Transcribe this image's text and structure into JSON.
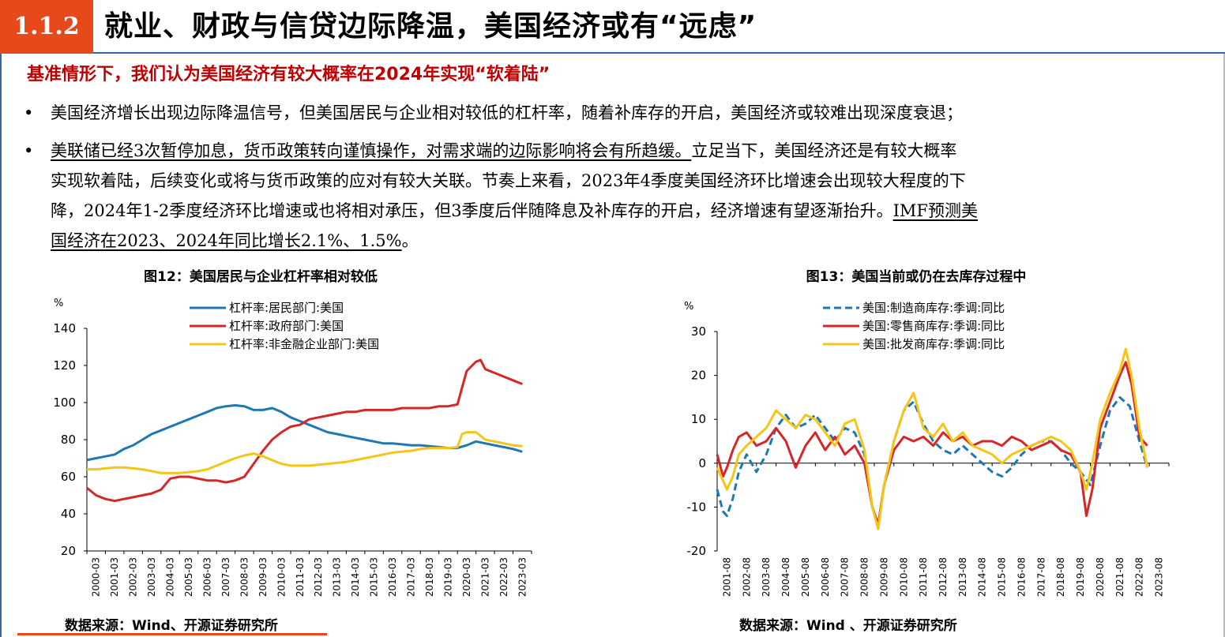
{
  "header": {
    "section": "1.1.2",
    "title": "就业、财政与信贷边际降温，美国经济或有“远虑”"
  },
  "subtitle": "基准情形下，我们认为美国经济有较大概率在2024年实现“软着陆”",
  "bullets": [
    {
      "lines": [
        {
          "segments": [
            {
              "text": "美国经济增长出现边际降温信号，但美国居民与企业相对较低的杠杆率，随着补库存的开启，美国经济或较难出现深度衰退；",
              "u": false
            }
          ]
        }
      ]
    },
    {
      "lines": [
        {
          "segments": [
            {
              "text": "美联储已经3次暂停加息，货币政策转向谨慎操作，对需求端的边际影响将会有所趋缓。",
              "u": true
            },
            {
              "text": "立足当下，美国经济还是有较大概率",
              "u": false
            }
          ]
        },
        {
          "segments": [
            {
              "text": "实现软着陆，后续变化或将与货币政策的应对有较大关联。节奏上来看，2023年4季度美国经济环比增速会出现较大程度的下",
              "u": false
            }
          ]
        },
        {
          "segments": [
            {
              "text": "降，2024年1-2季度经济环比增速或也将相对承压，但3季度后伴随降息及补库存的开启，经济增速有望逐渐抬升。",
              "u": false
            },
            {
              "text": "IMF预测美",
              "u": true
            }
          ]
        },
        {
          "segments": [
            {
              "text": "国经济在2023、2024年同比增长2.1%、1.5%",
              "u": true
            },
            {
              "text": "。",
              "u": false
            }
          ]
        }
      ]
    }
  ],
  "bullet_symbol": "•",
  "charts": [
    {
      "title": "图12：美国居民与企业杠杆率相对较低",
      "source": "数据来源：Wind、开源证券研究所"
    },
    {
      "title": "图13：美国当前或仍在去库存过程中",
      "source": "数据来源：Wind 、开源证券研究所"
    }
  ],
  "chart_data": [
    {
      "type": "line",
      "ylabel": "%",
      "ylim": [
        20,
        140
      ],
      "yticks": [
        20,
        40,
        60,
        80,
        100,
        120,
        140
      ],
      "x_start": 2000,
      "x_tick_labels": [
        "2000-03",
        "2001-03",
        "2002-03",
        "2003-03",
        "2004-03",
        "2005-03",
        "2006-03",
        "2007-03",
        "2008-03",
        "2009-03",
        "2010-03",
        "2011-03",
        "2012-03",
        "2013-03",
        "2014-03",
        "2015-03",
        "2016-03",
        "2017-03",
        "2018-03",
        "2019-03",
        "2020-03",
        "2021-03",
        "2022-03",
        "2023-03"
      ],
      "legend_position": "top-left",
      "grid": false,
      "series": [
        {
          "name": "杠杆率:居民部门:美国",
          "color": "#1f77b4",
          "x": [
            2000.0,
            2000.5,
            2001.0,
            2001.5,
            2002.0,
            2002.5,
            2003.0,
            2003.5,
            2004.0,
            2004.5,
            2005.0,
            2005.5,
            2006.0,
            2006.5,
            2007.0,
            2007.5,
            2008.0,
            2008.5,
            2009.0,
            2009.5,
            2010.0,
            2010.5,
            2011.0,
            2011.5,
            2012.0,
            2012.5,
            2013.0,
            2013.5,
            2014.0,
            2014.5,
            2015.0,
            2015.5,
            2016.0,
            2016.5,
            2017.0,
            2017.5,
            2018.0,
            2018.5,
            2019.0,
            2019.5,
            2020.0,
            2020.5,
            2021.0,
            2021.5,
            2022.0,
            2022.5,
            2023.0,
            2023.5
          ],
          "values": [
            69,
            70,
            71,
            72,
            75,
            77,
            80,
            83,
            85,
            87,
            89,
            91,
            93,
            95,
            97,
            98,
            98.5,
            98,
            96,
            96,
            97,
            95,
            92,
            90,
            88,
            86,
            84,
            83,
            82,
            81,
            80,
            79,
            78,
            78,
            77.5,
            77,
            77,
            76.5,
            76,
            75.5,
            75.5,
            77,
            79,
            78,
            77,
            76,
            75,
            73.5
          ]
        },
        {
          "name": "杠杆率:政府部门:美国",
          "color": "#d62728",
          "x": [
            2000.0,
            2000.5,
            2001.0,
            2001.5,
            2002.0,
            2002.5,
            2003.0,
            2003.5,
            2004.0,
            2004.5,
            2005.0,
            2005.5,
            2006.0,
            2006.5,
            2007.0,
            2007.5,
            2008.0,
            2008.5,
            2009.0,
            2009.5,
            2010.0,
            2010.5,
            2011.0,
            2011.5,
            2012.0,
            2012.5,
            2013.0,
            2013.5,
            2014.0,
            2014.5,
            2015.0,
            2015.5,
            2016.0,
            2016.5,
            2017.0,
            2017.5,
            2018.0,
            2018.5,
            2019.0,
            2019.5,
            2020.0,
            2020.25,
            2020.5,
            2021.0,
            2021.25,
            2021.5,
            2022.0,
            2022.5,
            2023.0,
            2023.5
          ],
          "values": [
            54,
            50,
            48,
            47,
            48,
            49,
            50,
            51,
            53,
            59,
            60,
            60,
            59,
            58,
            58,
            57,
            58,
            60,
            67,
            74,
            80,
            84,
            87,
            88,
            91,
            92,
            93,
            94,
            95,
            95,
            96,
            96,
            96,
            96,
            97,
            97,
            97,
            97,
            98,
            98,
            99,
            108,
            117,
            122,
            123,
            118,
            116,
            114,
            112,
            110
          ]
        },
        {
          "name": "杠杆率:非金融企业部门:美国",
          "color": "#f5c518",
          "x": [
            2000.0,
            2000.5,
            2001.0,
            2001.5,
            2002.0,
            2002.5,
            2003.0,
            2003.5,
            2004.0,
            2004.5,
            2005.0,
            2005.5,
            2006.0,
            2006.5,
            2007.0,
            2007.5,
            2008.0,
            2008.5,
            2009.0,
            2009.5,
            2010.0,
            2010.5,
            2011.0,
            2011.5,
            2012.0,
            2012.5,
            2013.0,
            2013.5,
            2014.0,
            2014.5,
            2015.0,
            2015.5,
            2016.0,
            2016.5,
            2017.0,
            2017.5,
            2018.0,
            2018.5,
            2019.0,
            2019.5,
            2020.0,
            2020.25,
            2020.5,
            2021.0,
            2021.5,
            2022.0,
            2022.5,
            2023.0,
            2023.5
          ],
          "values": [
            64,
            64,
            64.5,
            65,
            65,
            64.5,
            64,
            63,
            62,
            62,
            62,
            62.5,
            63,
            64,
            66,
            68,
            70,
            71.5,
            72.5,
            71,
            69,
            67,
            66,
            66,
            66,
            66.5,
            67,
            67.5,
            68,
            69,
            70,
            71,
            72,
            73,
            73.5,
            74,
            75,
            75.5,
            75.5,
            75.5,
            76,
            83,
            84,
            84,
            80,
            79,
            78,
            77,
            76.5
          ]
        }
      ]
    },
    {
      "type": "line",
      "ylabel": "%",
      "ylim": [
        -20,
        30
      ],
      "yticks": [
        -20,
        -10,
        0,
        10,
        20,
        30
      ],
      "x_start": 2001.5,
      "x_tick_labels": [
        "2001-08",
        "2002-08",
        "2003-08",
        "2004-08",
        "2005-08",
        "2006-08",
        "2007-08",
        "2008-08",
        "2009-08",
        "2010-08",
        "2011-08",
        "2012-08",
        "2013-08",
        "2014-08",
        "2015-08",
        "2016-08",
        "2017-08",
        "2018-08",
        "2019-08",
        "2020-08",
        "2021-08",
        "2022-08",
        "2023-08"
      ],
      "legend_position": "top-left",
      "grid": false,
      "series": [
        {
          "name": "美国:制造商库存:季调:同比",
          "color": "#1f77b4",
          "dashed": true,
          "x": [
            2001.5,
            2001.8,
            2002.0,
            2002.3,
            2002.6,
            2003.0,
            2003.5,
            2004.0,
            2004.5,
            2005.0,
            2005.5,
            2006.0,
            2006.5,
            2007.0,
            2007.5,
            2008.0,
            2008.5,
            2009.0,
            2009.4,
            2009.7,
            2010.0,
            2010.5,
            2011.0,
            2011.5,
            2012.0,
            2012.5,
            2013.0,
            2013.5,
            2014.0,
            2014.5,
            2015.0,
            2015.5,
            2016.0,
            2016.5,
            2017.0,
            2017.5,
            2018.0,
            2018.5,
            2019.0,
            2019.5,
            2020.0,
            2020.5,
            2021.0,
            2021.5,
            2022.0,
            2022.5,
            2023.0,
            2023.4
          ],
          "values": [
            -6,
            -11,
            -12,
            -8,
            -2,
            2,
            -2,
            2,
            8,
            11,
            8,
            9,
            11,
            8,
            5,
            8,
            7,
            2,
            -10,
            -14,
            -5,
            5,
            12,
            14,
            9,
            5,
            3,
            2,
            4,
            2,
            0,
            -2,
            -3,
            -1,
            2,
            4,
            5,
            5,
            3,
            0,
            -2,
            -5,
            4,
            12,
            15,
            13,
            5,
            -1
          ]
        },
        {
          "name": "美国:零售商库存:季调:同比",
          "color": "#d62728",
          "dashed": false,
          "x": [
            2001.5,
            2001.8,
            2002.0,
            2002.3,
            2002.6,
            2003.0,
            2003.5,
            2004.0,
            2004.5,
            2005.0,
            2005.5,
            2006.0,
            2006.5,
            2007.0,
            2007.5,
            2008.0,
            2008.5,
            2009.0,
            2009.4,
            2009.7,
            2010.0,
            2010.5,
            2011.0,
            2011.5,
            2012.0,
            2012.5,
            2013.0,
            2013.5,
            2014.0,
            2014.5,
            2015.0,
            2015.5,
            2016.0,
            2016.5,
            2017.0,
            2017.5,
            2018.0,
            2018.5,
            2019.0,
            2019.5,
            2020.0,
            2020.3,
            2020.6,
            2021.0,
            2021.5,
            2022.0,
            2022.3,
            2022.6,
            2023.0,
            2023.4
          ],
          "values": [
            2,
            -3,
            -1,
            3,
            6,
            7,
            4,
            5,
            8,
            5,
            -1,
            4,
            7,
            3,
            6,
            2,
            4,
            0,
            -10,
            -14,
            -5,
            3,
            6,
            5,
            6,
            4,
            7,
            5,
            6,
            4,
            5,
            5,
            4,
            6,
            5,
            3,
            4,
            5,
            3,
            2,
            -2,
            -12,
            -6,
            8,
            14,
            20,
            23,
            18,
            6,
            4
          ]
        },
        {
          "name": "美国:批发商库存:季调:同比",
          "color": "#f5c518",
          "dashed": false,
          "x": [
            2001.5,
            2001.8,
            2002.0,
            2002.3,
            2002.6,
            2003.0,
            2003.5,
            2004.0,
            2004.5,
            2005.0,
            2005.5,
            2006.0,
            2006.5,
            2007.0,
            2007.5,
            2008.0,
            2008.5,
            2009.0,
            2009.4,
            2009.7,
            2010.0,
            2010.5,
            2011.0,
            2011.5,
            2012.0,
            2012.5,
            2013.0,
            2013.5,
            2014.0,
            2014.5,
            2015.0,
            2015.5,
            2016.0,
            2016.5,
            2017.0,
            2017.5,
            2018.0,
            2018.5,
            2019.0,
            2019.5,
            2020.0,
            2020.3,
            2020.6,
            2021.0,
            2021.5,
            2022.0,
            2022.3,
            2022.6,
            2023.0,
            2023.4
          ],
          "values": [
            -1,
            -4,
            -6,
            -3,
            2,
            4,
            6,
            8,
            12,
            10,
            8,
            11,
            10,
            7,
            4,
            9,
            10,
            3,
            -10,
            -15,
            -5,
            5,
            12,
            16,
            8,
            6,
            9,
            5,
            7,
            4,
            3,
            2,
            0,
            2,
            3,
            4,
            5,
            6,
            5,
            3,
            -2,
            -6,
            0,
            10,
            16,
            21,
            26,
            20,
            8,
            -1
          ]
        }
      ]
    }
  ]
}
